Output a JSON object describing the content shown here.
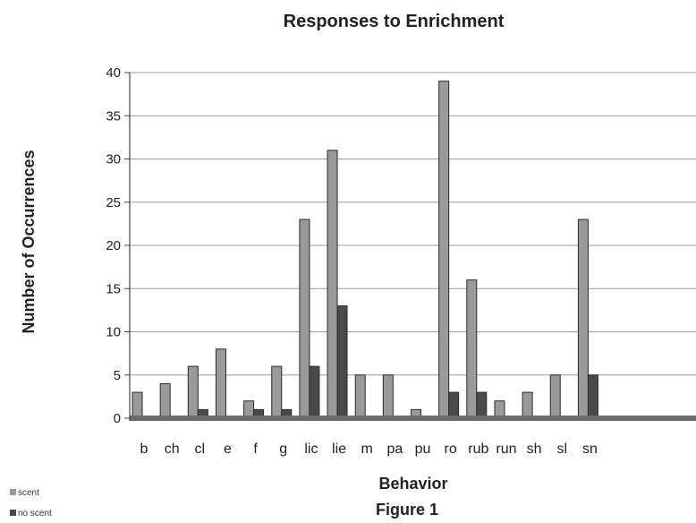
{
  "chart_data": {
    "type": "bar",
    "title": "Responses to Enrichment",
    "xlabel": "Behavior",
    "ylabel": "Number of Occurrences",
    "caption": "Figure 1",
    "categories": [
      "b",
      "ch",
      "cl",
      "e",
      "f",
      "g",
      "lic",
      "lie",
      "m",
      "pa",
      "pu",
      "ro",
      "rub",
      "run",
      "sh",
      "sl",
      "sn"
    ],
    "series": [
      {
        "name": "scent",
        "color": "#9a9a9a",
        "values": [
          3,
          4,
          6,
          8,
          2,
          6,
          23,
          31,
          5,
          5,
          1,
          39,
          16,
          2,
          3,
          5,
          23
        ]
      },
      {
        "name": "no scent",
        "color": "#4a4a4a",
        "values": [
          0,
          0,
          1,
          0,
          1,
          1,
          6,
          13,
          0,
          0,
          0,
          3,
          3,
          0,
          0,
          0,
          5
        ]
      }
    ],
    "ylim": [
      0,
      40
    ],
    "yticks": [
      0,
      5,
      10,
      15,
      20,
      25,
      30,
      35,
      40
    ],
    "grid": true,
    "legend_position": "bottom-left"
  }
}
